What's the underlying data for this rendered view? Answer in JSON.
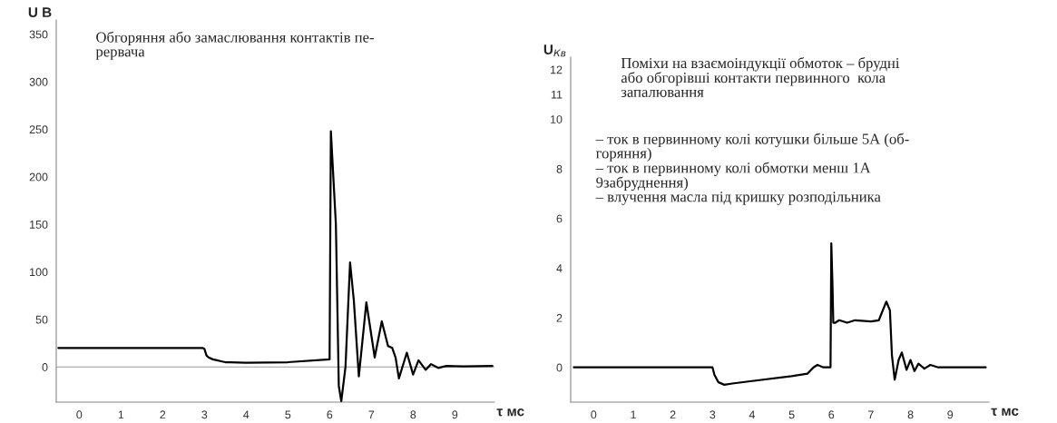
{
  "chart_data": [
    {
      "type": "line",
      "xlabel": "τ мс",
      "ylabel": "U В",
      "annotations": [
        "Обгоряння або замаслювання контактів пе-\nрервача"
      ],
      "xlim": [
        -0.55,
        9.95
      ],
      "ylim": [
        -37,
        365
      ],
      "xticks": [
        0,
        1,
        2,
        3,
        4,
        5,
        6,
        7,
        8,
        9
      ],
      "yticks": [
        0,
        50,
        100,
        150,
        200,
        250,
        300,
        350
      ],
      "ref_lines": [
        {
          "axis": "y",
          "value": 0,
          "color": "#9a9a9a"
        }
      ],
      "grid": false,
      "legend": false,
      "marker": "none",
      "line_style": "solid",
      "series": [
        {
          "color": "#000000",
          "x": [
            -0.5,
            2.95,
            3.0,
            3.05,
            3.1,
            3.2,
            3.3,
            3.4,
            3.5,
            4.0,
            5.0,
            6.0,
            6.0,
            6.03,
            6.15,
            6.22,
            6.28,
            6.38,
            6.49,
            6.58,
            6.7,
            6.88,
            7.08,
            7.25,
            7.4,
            7.5,
            7.58,
            7.66,
            7.85,
            8.0,
            8.13,
            8.3,
            8.43,
            8.6,
            8.8,
            9.2,
            9.9
          ],
          "values": [
            20,
            20,
            19,
            12,
            10,
            8,
            7,
            6,
            5,
            4.5,
            5,
            8,
            15,
            248,
            150,
            -20,
            -36,
            0,
            110,
            70,
            -10,
            68,
            10,
            48,
            22,
            20,
            10,
            -12,
            15,
            -8,
            7,
            -3,
            3,
            -1,
            1,
            0.5,
            1
          ]
        }
      ]
    },
    {
      "type": "line",
      "xlabel": "τ мс",
      "ylabel": "U$_{Кв}$",
      "annotations": [
        "Поміхи на взаємоіндукції обмоток – брудні\nабо обгорівші контакти первинного  кола\nзапалювання",
        "– ток в первинному колі котушки більше 5А (об-\nгоряння)\n– ток в первинному колі обмотки менш 1А\n9забруднення)\n– влучення масла під кришку розподільника"
      ],
      "xlim": [
        -0.58,
        9.98
      ],
      "ylim": [
        -1.4,
        12.5
      ],
      "xticks": [
        0,
        1,
        2,
        3,
        4,
        5,
        6,
        7,
        8,
        9
      ],
      "yticks": [
        0,
        2,
        4,
        6,
        8,
        10,
        11,
        12
      ],
      "grid": false,
      "legend": false,
      "marker": "none",
      "line_style": "solid",
      "series": [
        {
          "color": "#000000",
          "x": [
            -0.5,
            3.0,
            3.05,
            3.15,
            3.3,
            3.5,
            4.0,
            5.0,
            5.4,
            5.55,
            5.65,
            5.8,
            5.98,
            6.0,
            6.03,
            6.05,
            6.1,
            6.2,
            6.4,
            6.6,
            7.0,
            7.2,
            7.3,
            7.39,
            7.48,
            7.53,
            7.6,
            7.7,
            7.78,
            7.9,
            8.0,
            8.1,
            8.2,
            8.35,
            8.5,
            8.7,
            9.9
          ],
          "values": [
            0,
            0,
            -0.3,
            -0.6,
            -0.7,
            -0.65,
            -0.55,
            -0.35,
            -0.25,
            0,
            0.1,
            0,
            0,
            5.0,
            3.3,
            1.8,
            1.8,
            1.9,
            1.8,
            1.9,
            1.85,
            1.9,
            2.3,
            2.65,
            2.3,
            0.5,
            -0.5,
            0.3,
            0.6,
            -0.1,
            0.3,
            -0.15,
            0.15,
            -0.05,
            0.1,
            0,
            0
          ]
        }
      ]
    }
  ]
}
